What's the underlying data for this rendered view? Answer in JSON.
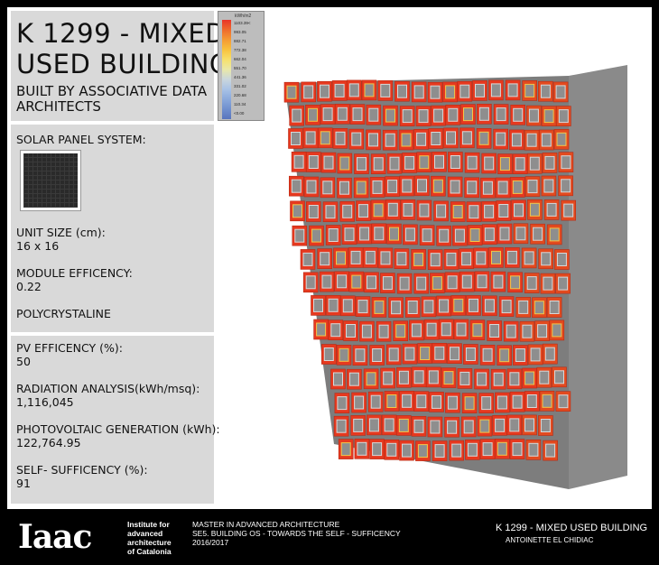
{
  "title": {
    "line1": "K 1299 - MIXED",
    "line2": "USED BUILDING"
  },
  "subtitle": {
    "line1": "BUILT BY ASSOCIATIVE DATA",
    "line2": "ARCHITECTS"
  },
  "solar": {
    "heading": "SOLAR PANEL SYSTEM:",
    "unit_size_label": "UNIT SIZE (cm):",
    "unit_size_value": "16 x 16",
    "module_eff_label": "MODULE EFFICENCY:",
    "module_eff_value": "0.22",
    "type": "POLYCRYSTALINE"
  },
  "analysis": {
    "pv_label": "PV EFFICENCY (%):",
    "pv_value": "50",
    "radiation_label": "RADIATION ANALYSIS(kWh/msq):",
    "radiation_value": "1,116,045",
    "generation_label": "PHOTOVOLTAIC GENERATION (kWh):",
    "generation_value": "122,764.95",
    "self_label": "SELF- SUFFICENCY (%):",
    "self_value": "91"
  },
  "legend": {
    "unit": "kWh/m2",
    "values": [
      "1103.39<",
      "993.05",
      "882.71",
      "772.38",
      "662.04",
      "551.70",
      "441.36",
      "331.02",
      "220.68",
      "110.34",
      "<0.00"
    ],
    "colors": [
      "#e8332a",
      "#ef6a2c",
      "#f59a33",
      "#f8c23d",
      "#f7e06b",
      "#e9e8a8",
      "#c9d6dd",
      "#a8c2e6",
      "#8aa9dc",
      "#6f8fce",
      "#5874bd"
    ]
  },
  "footer": {
    "logo": "Iaac",
    "institute": [
      "Institute for",
      "advanced",
      "architecture",
      "of Catalonia"
    ],
    "program": [
      "MASTER IN ADVANCED ARCHITECTURE",
      "SE5. BUILDING OS - TOWARDS THE SELF - SUFFICENCY",
      "2016/2017"
    ],
    "project": "K 1299 - MIXED USED BUILDING",
    "author": "ANTOINETTE EL CHIDIAC"
  }
}
